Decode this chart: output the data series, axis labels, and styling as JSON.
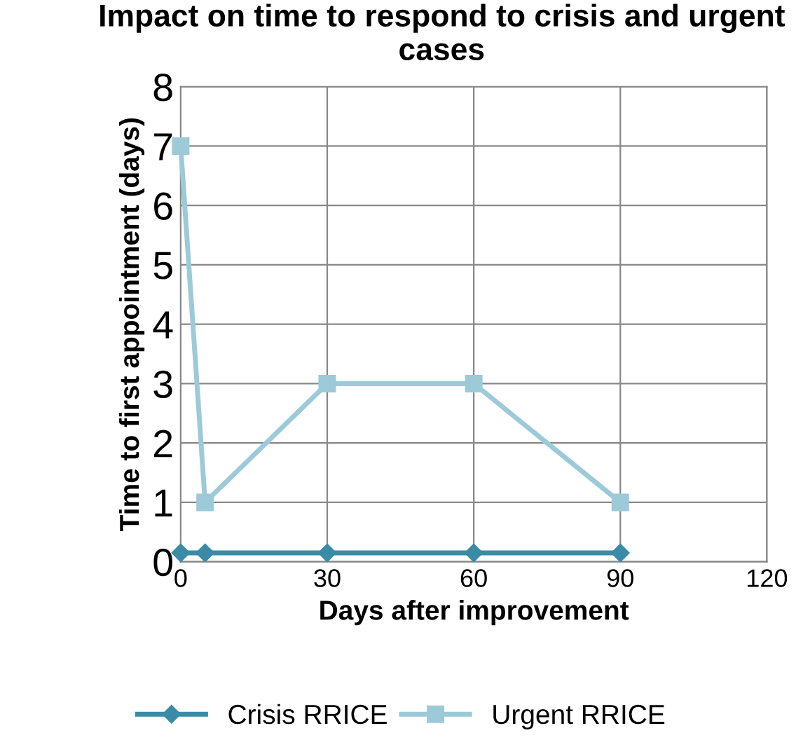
{
  "chart_data": {
    "type": "line",
    "title": "Impact on time to respond to crisis and urgent cases",
    "xlabel": "Days after improvement",
    "ylabel": "Time to first appointment (days)",
    "x": [
      0,
      5,
      30,
      60,
      90
    ],
    "series": [
      {
        "name": "Crisis RRICE",
        "color": "#3a8ca6",
        "marker": "diamond",
        "values": [
          0.15,
          0.15,
          0.15,
          0.15,
          0.15
        ]
      },
      {
        "name": "Urgent RRICE",
        "color": "#9ccad8",
        "marker": "square",
        "values": [
          7,
          1,
          3,
          3,
          1
        ]
      }
    ],
    "xlim": [
      0,
      120
    ],
    "xticks": [
      0,
      30,
      60,
      90,
      120
    ],
    "ylim": [
      0,
      8
    ],
    "yticks": [
      0,
      1,
      2,
      3,
      4,
      5,
      6,
      7,
      8
    ],
    "grid": true,
    "legend": "bottom",
    "line_style": "solid"
  }
}
